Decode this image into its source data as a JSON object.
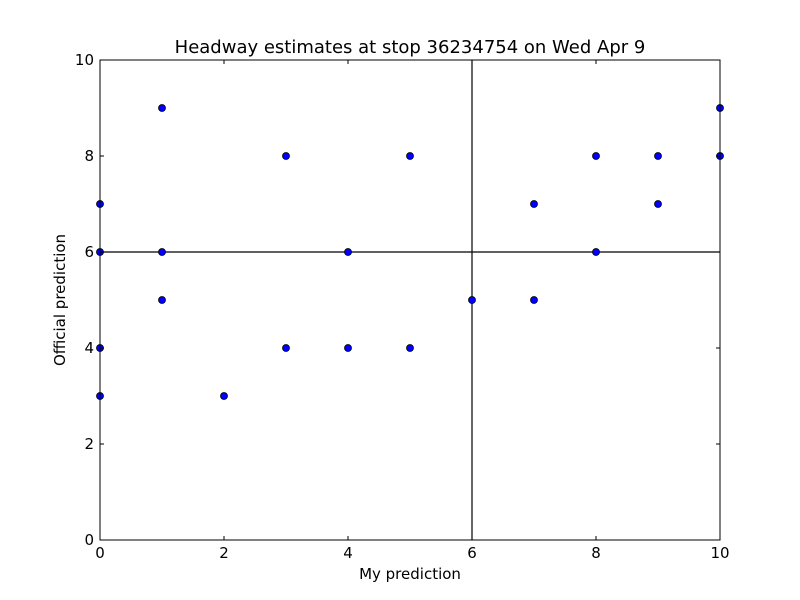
{
  "chart_data": {
    "type": "scatter",
    "title": "Headway estimates at stop 36234754 on Wed Apr 9",
    "xlabel": "My prediction",
    "ylabel": "Official prediction",
    "xlim": [
      0,
      10
    ],
    "ylim": [
      0,
      10
    ],
    "x_ticks": [
      0,
      2,
      4,
      6,
      8,
      10
    ],
    "y_ticks": [
      0,
      2,
      4,
      6,
      8,
      10
    ],
    "grid": false,
    "reference_lines": {
      "vertical_x": 6,
      "horizontal_y": 6
    },
    "marker_color": "#0000ff",
    "marker_edge_color": "#000000",
    "points": [
      {
        "x": 0,
        "y": 7
      },
      {
        "x": 0,
        "y": 6
      },
      {
        "x": 0,
        "y": 4
      },
      {
        "x": 0,
        "y": 3
      },
      {
        "x": 1,
        "y": 9
      },
      {
        "x": 1,
        "y": 6
      },
      {
        "x": 1,
        "y": 5
      },
      {
        "x": 2,
        "y": 3
      },
      {
        "x": 3,
        "y": 8
      },
      {
        "x": 3,
        "y": 4
      },
      {
        "x": 4,
        "y": 6
      },
      {
        "x": 4,
        "y": 4
      },
      {
        "x": 5,
        "y": 8
      },
      {
        "x": 5,
        "y": 4
      },
      {
        "x": 6,
        "y": 5
      },
      {
        "x": 7,
        "y": 7
      },
      {
        "x": 7,
        "y": 5
      },
      {
        "x": 8,
        "y": 8
      },
      {
        "x": 8,
        "y": 6
      },
      {
        "x": 9,
        "y": 8
      },
      {
        "x": 9,
        "y": 7
      },
      {
        "x": 10,
        "y": 9
      },
      {
        "x": 10,
        "y": 8
      }
    ]
  }
}
